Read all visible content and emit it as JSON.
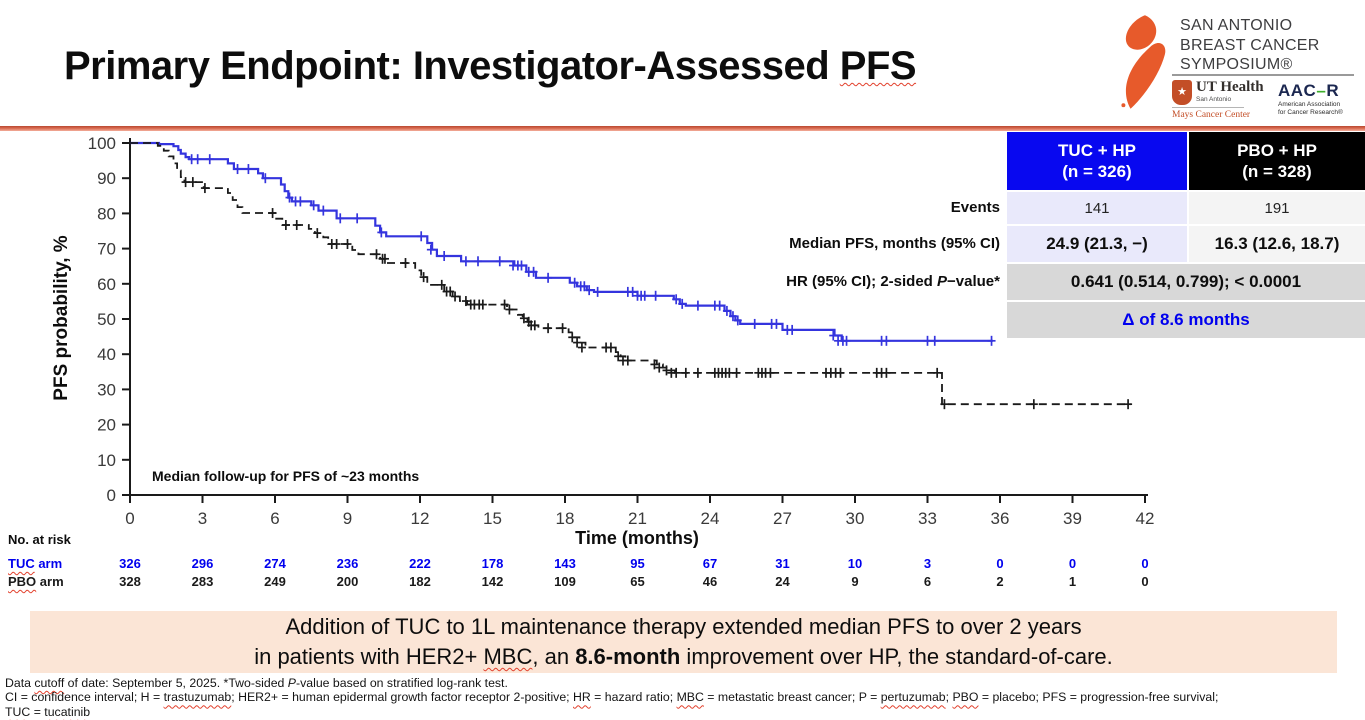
{
  "slide": {
    "title_segments": [
      {
        "t": "Primary Endpoint: Investigator-Assessed "
      },
      {
        "t": "PFS",
        "s": "sq"
      }
    ]
  },
  "logo": {
    "symposium_lines": [
      "SAN ANTONIO",
      "BREAST CANCER",
      "SYMPOSIUM®"
    ],
    "ribbon_color": "#e75a2b",
    "ut_health": {
      "star": "★",
      "name": "UT Health",
      "city": "San Antonio",
      "center": "Mays Cancer Center"
    },
    "aacr": {
      "abbr_left": "AAC",
      "dash": "–",
      "abbr_right": "R",
      "full_line1": "American Association",
      "full_line2": "for Cancer Research®"
    }
  },
  "chart_data": {
    "type": "line",
    "subtype": "kaplan-meier-step",
    "xlabel": "Time (months)",
    "ylabel": "PFS probability, %",
    "xlim": [
      0,
      42
    ],
    "ylim": [
      0,
      100
    ],
    "x_ticks": [
      0,
      3,
      6,
      9,
      12,
      15,
      18,
      21,
      24,
      27,
      30,
      33,
      36,
      39,
      42
    ],
    "y_ticks": [
      0,
      10,
      20,
      30,
      40,
      50,
      60,
      70,
      80,
      90,
      100
    ],
    "grid": false,
    "annotation": "Median follow-up for PFS of ~23 months",
    "series": [
      {
        "name": "TUC + HP",
        "color": "#3434de",
        "dash": null,
        "width": 2.2,
        "steps": [
          [
            0,
            100
          ],
          [
            1.2,
            99.7
          ],
          [
            1.8,
            99.1
          ],
          [
            2,
            98
          ],
          [
            2.1,
            97
          ],
          [
            2.3,
            96
          ],
          [
            2.45,
            95.4
          ],
          [
            4.05,
            94.2
          ],
          [
            4.3,
            92.6
          ],
          [
            5.3,
            91.4
          ],
          [
            5.5,
            90
          ],
          [
            6.25,
            88.2
          ],
          [
            6.4,
            86.3
          ],
          [
            6.55,
            84.5
          ],
          [
            6.7,
            83.4
          ],
          [
            7.5,
            82.3
          ],
          [
            7.8,
            80.8
          ],
          [
            8.55,
            78.6
          ],
          [
            10.15,
            76.5
          ],
          [
            10.35,
            74.6
          ],
          [
            10.6,
            73.5
          ],
          [
            12.3,
            71.6
          ],
          [
            12.5,
            69.7
          ],
          [
            12.7,
            67.9
          ],
          [
            13.7,
            66.4
          ],
          [
            15.9,
            65.2
          ],
          [
            16.4,
            63.4
          ],
          [
            16.8,
            61.7
          ],
          [
            18.2,
            60.3
          ],
          [
            18.5,
            59.3
          ],
          [
            18.9,
            58.2
          ],
          [
            19.2,
            57.7
          ],
          [
            21,
            56.6
          ],
          [
            22.5,
            55.6
          ],
          [
            22.75,
            54.3
          ],
          [
            23,
            53.8
          ],
          [
            24.6,
            52.3
          ],
          [
            24.85,
            50.8
          ],
          [
            25.05,
            49.6
          ],
          [
            25.25,
            48.6
          ],
          [
            27,
            46.9
          ],
          [
            29.15,
            45.3
          ],
          [
            29.45,
            43.8
          ],
          [
            35.7,
            43.8
          ]
        ],
        "censors": [
          [
            2.55,
            95.4
          ],
          [
            2.8,
            95.4
          ],
          [
            3.3,
            95.4
          ],
          [
            4.45,
            92.6
          ],
          [
            4.9,
            92.6
          ],
          [
            5.6,
            90
          ],
          [
            6.6,
            84.5
          ],
          [
            6.85,
            83.4
          ],
          [
            7.05,
            83.4
          ],
          [
            7.6,
            82.3
          ],
          [
            8,
            80.8
          ],
          [
            8.7,
            78.6
          ],
          [
            9.4,
            78.6
          ],
          [
            10.4,
            74.6
          ],
          [
            12.05,
            73.5
          ],
          [
            12.45,
            69.7
          ],
          [
            13,
            67.9
          ],
          [
            13.9,
            66.4
          ],
          [
            14.4,
            66.4
          ],
          [
            15.3,
            66.4
          ],
          [
            15.85,
            65.2
          ],
          [
            16.05,
            65.2
          ],
          [
            16.2,
            65.2
          ],
          [
            16.5,
            63.4
          ],
          [
            16.7,
            63.4
          ],
          [
            17.3,
            61.7
          ],
          [
            18.4,
            60.3
          ],
          [
            18.65,
            59.3
          ],
          [
            18.8,
            59.3
          ],
          [
            19,
            58.2
          ],
          [
            19.35,
            57.7
          ],
          [
            20.6,
            57.7
          ],
          [
            20.8,
            57.7
          ],
          [
            21,
            56.6
          ],
          [
            21.15,
            56.6
          ],
          [
            21.3,
            56.6
          ],
          [
            21.75,
            56.6
          ],
          [
            22.6,
            55.6
          ],
          [
            22.85,
            54.3
          ],
          [
            23.5,
            53.8
          ],
          [
            24.2,
            53.8
          ],
          [
            24.4,
            53.8
          ],
          [
            24.7,
            52.3
          ],
          [
            24.95,
            50.8
          ],
          [
            25.15,
            49.6
          ],
          [
            25.85,
            48.6
          ],
          [
            26.55,
            48.6
          ],
          [
            26.75,
            48.6
          ],
          [
            27.2,
            46.9
          ],
          [
            27.4,
            46.9
          ],
          [
            29.1,
            45.3
          ],
          [
            29.3,
            43.8
          ],
          [
            29.5,
            43.8
          ],
          [
            29.65,
            43.8
          ],
          [
            31.1,
            43.8
          ],
          [
            31.3,
            43.8
          ],
          [
            33,
            43.8
          ],
          [
            33.3,
            43.8
          ],
          [
            35.65,
            43.8
          ]
        ]
      },
      {
        "name": "PBO + HP",
        "color": "#1a1a1a",
        "dash": "8,5",
        "width": 1.8,
        "steps": [
          [
            0,
            100
          ],
          [
            1.15,
            99.2
          ],
          [
            1.4,
            97.8
          ],
          [
            1.6,
            96.2
          ],
          [
            1.8,
            94.2
          ],
          [
            1.95,
            92.2
          ],
          [
            2.1,
            90.3
          ],
          [
            2.25,
            88.9
          ],
          [
            3.05,
            87.2
          ],
          [
            4.05,
            85.8
          ],
          [
            4.25,
            83.8
          ],
          [
            4.45,
            81.8
          ],
          [
            4.65,
            80.1
          ],
          [
            6.05,
            78.5
          ],
          [
            6.3,
            76.7
          ],
          [
            7.4,
            75.6
          ],
          [
            7.65,
            74.4
          ],
          [
            8,
            73.2
          ],
          [
            8.2,
            71.3
          ],
          [
            9.2,
            69.6
          ],
          [
            9.45,
            68.4
          ],
          [
            10.35,
            67.1
          ],
          [
            10.6,
            65.9
          ],
          [
            11.8,
            63.8
          ],
          [
            12.05,
            61.9
          ],
          [
            12.3,
            59.7
          ],
          [
            13,
            57.8
          ],
          [
            13.35,
            56.4
          ],
          [
            13.65,
            55.1
          ],
          [
            13.95,
            54.1
          ],
          [
            15.6,
            52.7
          ],
          [
            16.05,
            51.2
          ],
          [
            16.25,
            50.2
          ],
          [
            16.45,
            49.2
          ],
          [
            16.65,
            48.2
          ],
          [
            16.9,
            47.4
          ],
          [
            18.15,
            46.2
          ],
          [
            18.35,
            44.8
          ],
          [
            18.6,
            43.3
          ],
          [
            18.85,
            41.9
          ],
          [
            20.1,
            40.6
          ],
          [
            20.3,
            39.4
          ],
          [
            20.5,
            38.2
          ],
          [
            21.8,
            37.1
          ],
          [
            22.05,
            36.2
          ],
          [
            22.3,
            35.4
          ],
          [
            22.55,
            34.7
          ],
          [
            33.6,
            25.8
          ],
          [
            41.4,
            25.8
          ]
        ],
        "censors": [
          [
            2.3,
            88.9
          ],
          [
            2.6,
            88.9
          ],
          [
            3.1,
            87.2
          ],
          [
            5.9,
            80.1
          ],
          [
            6.45,
            76.7
          ],
          [
            6.9,
            76.7
          ],
          [
            7.75,
            74.4
          ],
          [
            8.35,
            71.3
          ],
          [
            8.55,
            71.3
          ],
          [
            9,
            71.3
          ],
          [
            10.2,
            68.4
          ],
          [
            10.45,
            67.1
          ],
          [
            10.55,
            67.1
          ],
          [
            11.4,
            65.9
          ],
          [
            12.15,
            61.9
          ],
          [
            12.9,
            59.7
          ],
          [
            13.1,
            57.8
          ],
          [
            13.25,
            57.8
          ],
          [
            13.45,
            56.4
          ],
          [
            13.9,
            55.1
          ],
          [
            14.1,
            54.1
          ],
          [
            14.25,
            54.1
          ],
          [
            14.45,
            54.1
          ],
          [
            14.6,
            54.1
          ],
          [
            15.5,
            54.1
          ],
          [
            15.7,
            52.7
          ],
          [
            16.3,
            50.2
          ],
          [
            16.5,
            49.2
          ],
          [
            16.6,
            48.2
          ],
          [
            16.75,
            48.2
          ],
          [
            17.3,
            47.4
          ],
          [
            17.9,
            47.4
          ],
          [
            18.3,
            44.8
          ],
          [
            18.5,
            43.3
          ],
          [
            18.7,
            41.9
          ],
          [
            19.7,
            41.9
          ],
          [
            19.9,
            41.9
          ],
          [
            20.2,
            39.4
          ],
          [
            20.4,
            38.2
          ],
          [
            20.6,
            38.2
          ],
          [
            21.7,
            37.1
          ],
          [
            21.9,
            36.2
          ],
          [
            22.2,
            35.4
          ],
          [
            22.4,
            34.7
          ],
          [
            22.6,
            34.7
          ],
          [
            23,
            34.7
          ],
          [
            23.5,
            34.7
          ],
          [
            24.2,
            34.7
          ],
          [
            24.35,
            34.7
          ],
          [
            24.5,
            34.7
          ],
          [
            24.65,
            34.7
          ],
          [
            24.8,
            34.7
          ],
          [
            25.1,
            34.7
          ],
          [
            26,
            34.7
          ],
          [
            26.15,
            34.7
          ],
          [
            26.3,
            34.7
          ],
          [
            26.5,
            34.7
          ],
          [
            28.8,
            34.7
          ],
          [
            29,
            34.7
          ],
          [
            29.2,
            34.7
          ],
          [
            29.4,
            34.7
          ],
          [
            30.9,
            34.7
          ],
          [
            31.1,
            34.7
          ],
          [
            31.3,
            34.7
          ],
          [
            33.4,
            34.7
          ],
          [
            33.7,
            25.8
          ],
          [
            37.4,
            25.8
          ],
          [
            41.3,
            25.8
          ]
        ]
      }
    ],
    "risk_table": {
      "title": "No. at risk",
      "months": [
        0,
        3,
        6,
        9,
        12,
        15,
        18,
        21,
        24,
        27,
        30,
        33,
        36,
        39,
        42
      ],
      "rows": [
        {
          "label_segments": [
            {
              "t": "TUC",
              "s": "sq"
            },
            {
              "t": " arm"
            }
          ],
          "color": "#0000ee",
          "values": [
            326,
            296,
            274,
            236,
            222,
            178,
            143,
            95,
            67,
            31,
            10,
            3,
            0,
            0,
            0
          ]
        },
        {
          "label_segments": [
            {
              "t": "PBO",
              "s": "sq"
            },
            {
              "t": " arm"
            }
          ],
          "color": "#1a1a1a",
          "values": [
            328,
            283,
            249,
            200,
            182,
            142,
            109,
            65,
            46,
            24,
            9,
            6,
            2,
            1,
            0
          ]
        }
      ]
    }
  },
  "stats_table": {
    "tuc": {
      "header_line1": "TUC + HP",
      "header_line2": "(n = 326)",
      "header_bg": "#0808f0",
      "cell_bg": "#e9e9fb"
    },
    "pbo": {
      "header_line1": "PBO + HP",
      "header_line2": "(n = 328)",
      "header_bg": "#000000",
      "cell_bg": "#f4f4f4"
    },
    "span_bg": "#d8d8d8",
    "rows": {
      "events": {
        "label": "Events",
        "tuc": "141",
        "pbo": "191"
      },
      "median": {
        "label": "Median PFS, months (95% CI)",
        "tuc": "24.9 (21.3, −)",
        "pbo": "16.3 (12.6, 18.7)"
      },
      "hr": {
        "label_segments": [
          {
            "t": "HR (95% CI); 2-sided "
          },
          {
            "t": "P",
            "s": "i"
          },
          {
            "t": "−value*"
          }
        ],
        "value": "0.641 (0.514, 0.799); < 0.0001"
      },
      "delta": {
        "value": "Δ of 8.6 months",
        "color": "#0000ee"
      }
    }
  },
  "callout": {
    "bg": "#fbe5d6",
    "line1_segments": [
      {
        "t": "Addition of TUC to 1L maintenance therapy extended median PFS to over 2 years"
      }
    ],
    "line2_segments": [
      {
        "t": "in patients with HER2+ "
      },
      {
        "t": "MBC",
        "s": "sq"
      },
      {
        "t": ", an "
      },
      {
        "t": "8.6-month",
        "s": "b"
      },
      {
        "t": " improvement over HP, the standard-of-care."
      }
    ]
  },
  "footnotes": [
    [
      {
        "t": "Data "
      },
      {
        "t": "cutoff",
        "s": "sq"
      },
      {
        "t": " of date: September 5, 2025. *Two-sided "
      },
      {
        "t": "P",
        "s": "i"
      },
      {
        "t": "-value based on stratified log-rank test."
      }
    ],
    [
      {
        "t": "CI = confidence interval; H = "
      },
      {
        "t": "trastuzumab",
        "s": "sq"
      },
      {
        "t": "; HER2+ = human epidermal growth factor receptor 2-positive; "
      },
      {
        "t": "HR",
        "s": "sq"
      },
      {
        "t": " = hazard ratio; "
      },
      {
        "t": "MBC",
        "s": "sq"
      },
      {
        "t": " = metastatic breast cancer; P = "
      },
      {
        "t": "pertuzumab",
        "s": "sq"
      },
      {
        "t": "; "
      },
      {
        "t": "PBO",
        "s": "sq"
      },
      {
        "t": " = placebo; PFS = progression-free survival;"
      }
    ],
    [
      {
        "t": "TUC",
        "s": "sq"
      },
      {
        "t": " = "
      },
      {
        "t": "tucatinib",
        "s": "sq"
      }
    ]
  ]
}
